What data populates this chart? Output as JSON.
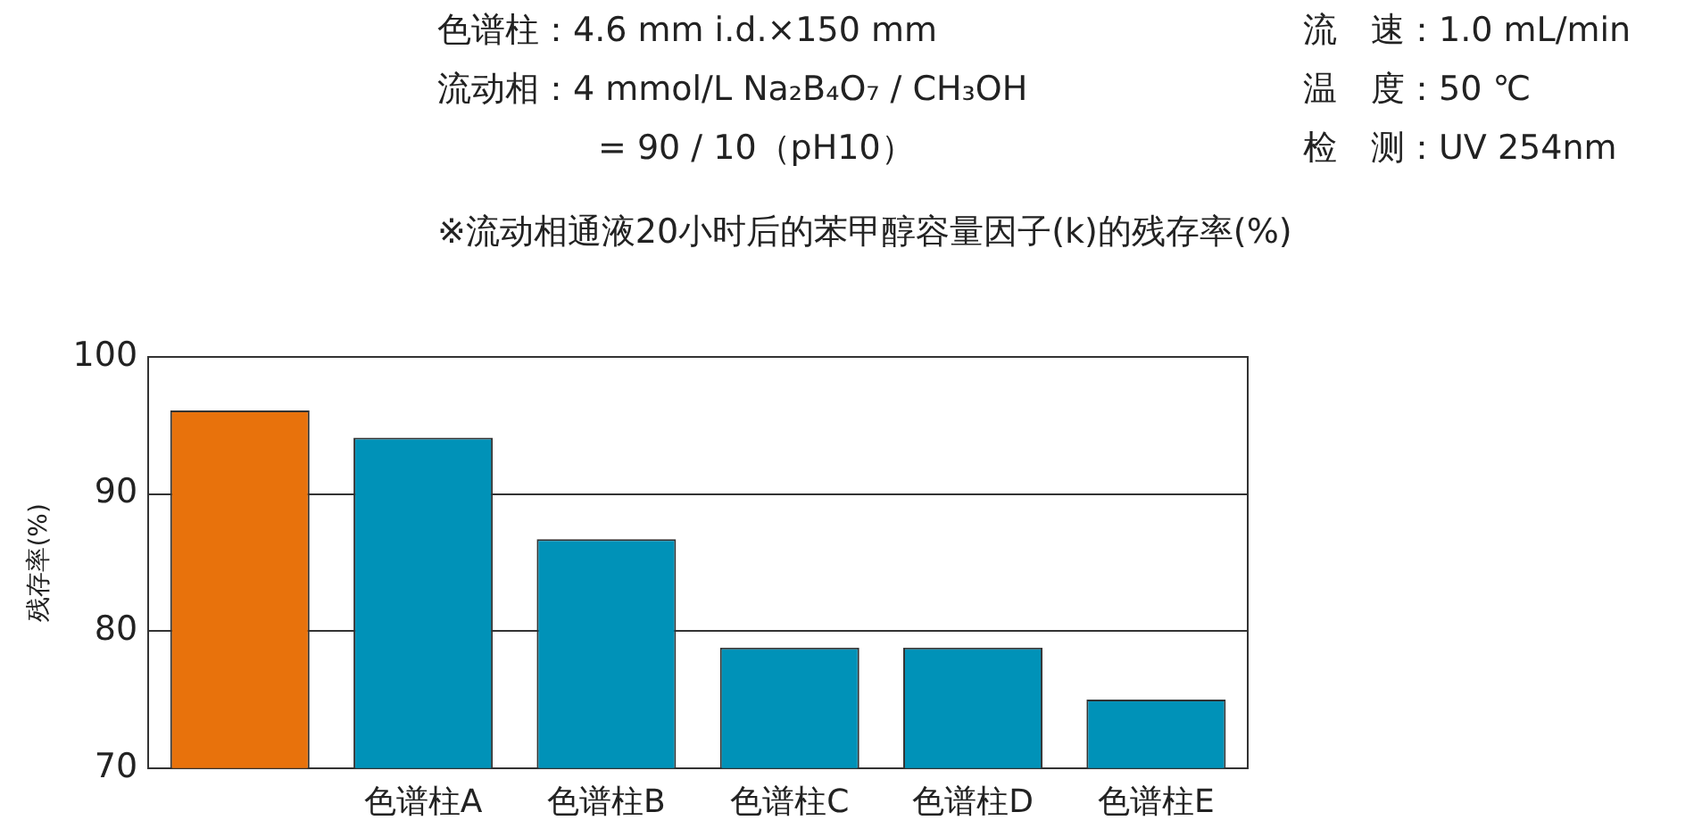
{
  "chart_data": {
    "type": "bar",
    "title": "※流动相通液20小时后的苯甲醇容量因子(k)的残存率(%)",
    "annotations": [
      "色谱柱：4.6 mm i.d.×150 mm",
      "流动相：4 mmol/L Na₂B₄O₇ / CH₃OH",
      "= 90 / 10（pH10）",
      "流　速：1.0 mL/min",
      "温　度：50 ℃",
      "检　测：UV 254nm"
    ],
    "ylabel": "残存率(%)",
    "categories": [
      null,
      "色谱柱A",
      "色谱柱B",
      "色谱柱C",
      "色谱柱D",
      "色谱柱E"
    ],
    "values": [
      96.1,
      94.1,
      86.7,
      78.8,
      78.8,
      75.0
    ],
    "colors": [
      "#e8720c",
      "#0092b8",
      "#0092b8",
      "#0092b8",
      "#0092b8",
      "#0092b8"
    ],
    "ylim": [
      70,
      100
    ],
    "yticks": [
      70,
      80,
      90,
      100
    ],
    "grid": "y",
    "legend": false
  }
}
